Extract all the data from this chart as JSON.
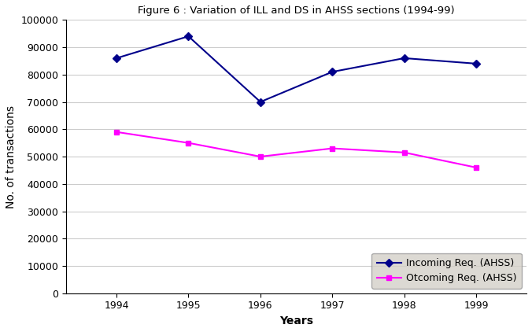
{
  "title": "Figure 6 : Variation of ILL and DS in AHSS sections (1994-99)",
  "xlabel": "Years",
  "ylabel": "No. of transactions",
  "years": [
    1994,
    1995,
    1996,
    1997,
    1998,
    1999
  ],
  "incoming": [
    86000,
    94000,
    70000,
    81000,
    86000,
    84000
  ],
  "outcoming": [
    59000,
    55000,
    50000,
    53000,
    51500,
    46000
  ],
  "incoming_color": "#00008B",
  "outcoming_color": "#FF00FF",
  "incoming_label": "Incoming Req. (AHSS)",
  "outcoming_label": "Otcoming Req. (AHSS)",
  "ylim": [
    0,
    100000
  ],
  "yticks": [
    0,
    10000,
    20000,
    30000,
    40000,
    50000,
    60000,
    70000,
    80000,
    90000,
    100000
  ],
  "background_color": "#ffffff",
  "plot_bg_color": "#ffffff",
  "legend_bg": "#d4d0c8",
  "title_fontsize": 9.5,
  "axis_fontsize": 10,
  "tick_fontsize": 9
}
